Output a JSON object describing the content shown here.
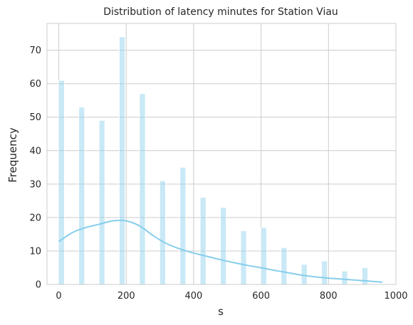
{
  "chart_data": {
    "type": "bar",
    "title": "Distribution of latency minutes for Station Viau",
    "xlabel": "s",
    "ylabel": "Frequency",
    "xlim": [
      -35,
      1000
    ],
    "ylim": [
      0,
      78
    ],
    "xticks": [
      0,
      200,
      400,
      600,
      800,
      1000
    ],
    "yticks": [
      0,
      10,
      20,
      30,
      40,
      50,
      60,
      70
    ],
    "grid": true,
    "bar_color": "#87CEEB",
    "line_color": "#87CEEB",
    "bar_width": 17,
    "bars": [
      {
        "x": 8,
        "value": 61
      },
      {
        "x": 68,
        "value": 53
      },
      {
        "x": 128,
        "value": 49
      },
      {
        "x": 188,
        "value": 74
      },
      {
        "x": 248,
        "value": 57
      },
      {
        "x": 308,
        "value": 31
      },
      {
        "x": 368,
        "value": 35
      },
      {
        "x": 428,
        "value": 26
      },
      {
        "x": 488,
        "value": 23
      },
      {
        "x": 548,
        "value": 16
      },
      {
        "x": 608,
        "value": 17
      },
      {
        "x": 668,
        "value": 11
      },
      {
        "x": 728,
        "value": 6
      },
      {
        "x": 788,
        "value": 7
      },
      {
        "x": 848,
        "value": 4
      },
      {
        "x": 908,
        "value": 5
      }
    ],
    "kde": {
      "x": [
        0,
        40,
        80,
        120,
        160,
        200,
        240,
        280,
        320,
        360,
        400,
        440,
        480,
        520,
        560,
        600,
        640,
        680,
        720,
        760,
        800,
        840,
        880,
        920,
        960
      ],
      "y": [
        12.8,
        15.5,
        17,
        18,
        19,
        19,
        17.5,
        14.6,
        12.2,
        10.6,
        9.4,
        8.4,
        7.4,
        6.5,
        5.7,
        5,
        4.2,
        3.5,
        2.8,
        2.3,
        1.9,
        1.6,
        1.3,
        1,
        0.7
      ]
    }
  }
}
